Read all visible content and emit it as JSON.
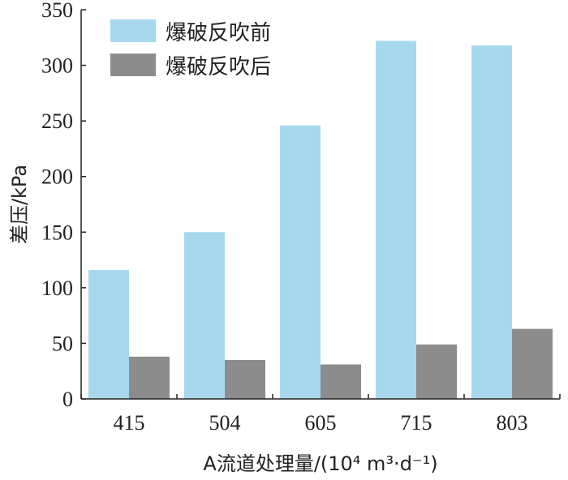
{
  "chart_data": {
    "type": "bar",
    "categories": [
      "415",
      "504",
      "605",
      "715",
      "803"
    ],
    "series": [
      {
        "name": "爆破反吹前",
        "color": "#a8d8ee",
        "values": [
          116,
          150,
          246,
          322,
          318
        ]
      },
      {
        "name": "爆破反吹后",
        "color": "#8c8c8c",
        "values": [
          38,
          35,
          31,
          49,
          63
        ]
      }
    ],
    "title": "",
    "xlabel": "A流道处理量/(10⁴ m³·d⁻¹)",
    "ylabel": "差压/kPa",
    "ylim": [
      0,
      350
    ],
    "yticks": [
      0,
      50,
      100,
      150,
      200,
      250,
      300,
      350
    ],
    "grid": false,
    "legend_position": "top-left"
  }
}
